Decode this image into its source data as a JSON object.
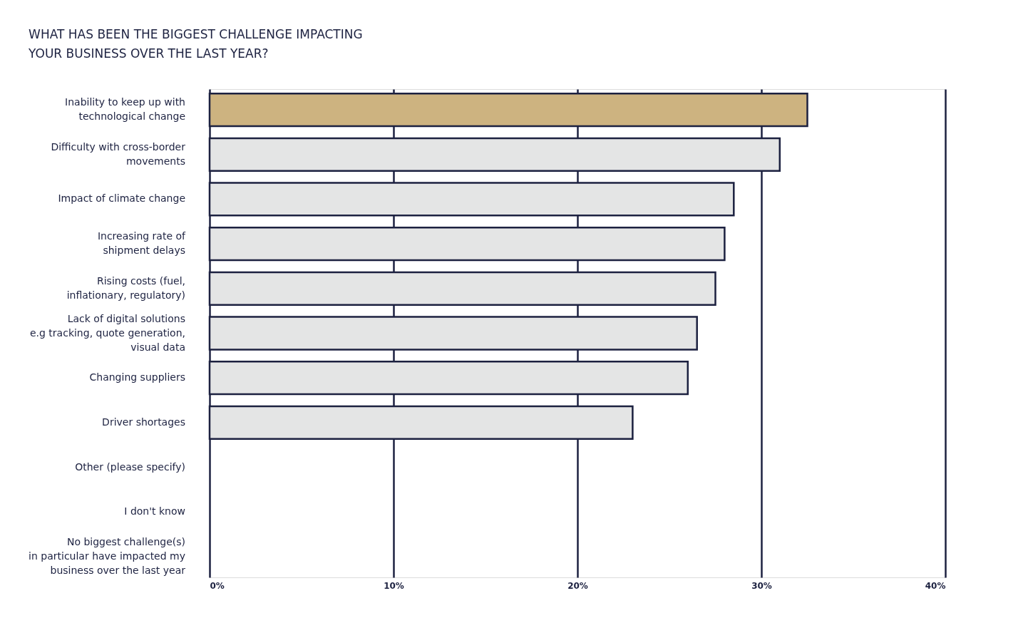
{
  "chart_data": {
    "type": "bar",
    "orientation": "horizontal",
    "title": "WHAT HAS BEEN THE BIGGEST CHALLENGE IMPACTING\nYOUR BUSINESS OVER THE LAST YEAR?",
    "categories": [
      "Inability to keep up with\ntechnological change",
      "Difficulty with cross-border\nmovements",
      "Impact of climate change",
      "Increasing rate of\nshipment delays",
      "Rising costs (fuel,\ninflationary, regulatory)",
      "Lack of digital solutions\ne.g tracking, quote generation,\nvisual data",
      "Changing suppliers",
      "Driver shortages",
      "Other (please specify)",
      "I don't know",
      "No biggest challenge(s)\nin particular have impacted my\nbusiness over the last year"
    ],
    "values": [
      32.5,
      31.0,
      28.5,
      28.0,
      27.5,
      26.5,
      26.0,
      23.0,
      null,
      null,
      null
    ],
    "colors": [
      "#cdb380",
      "#e4e5e5",
      "#e4e5e5",
      "#e4e5e5",
      "#e4e5e5",
      "#e4e5e5",
      "#e4e5e5",
      "#e4e5e5",
      null,
      null,
      null
    ],
    "xlim": [
      0,
      40
    ],
    "xticks": [
      {
        "value": 0,
        "label": "0%"
      },
      {
        "value": 10,
        "label": "10%"
      },
      {
        "value": 20,
        "label": "20%"
      },
      {
        "value": 30,
        "label": "30%"
      },
      {
        "value": 40,
        "label": "40%"
      }
    ],
    "grid": "x"
  }
}
